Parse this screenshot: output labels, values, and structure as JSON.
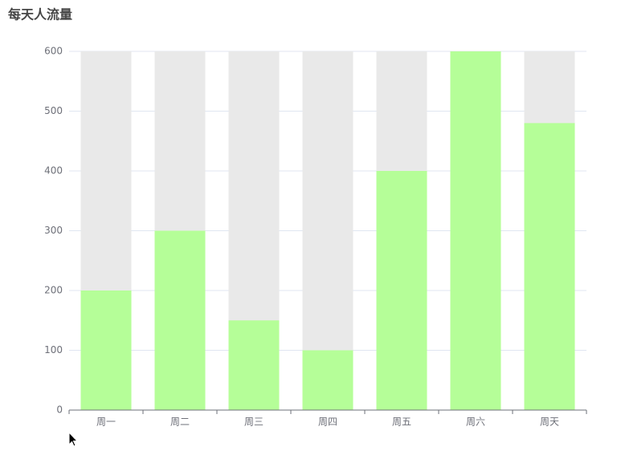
{
  "chart_data": {
    "type": "bar",
    "title": "每天人流量",
    "categories": [
      "周一",
      "周二",
      "周三",
      "周四",
      "周五",
      "周六",
      "周天"
    ],
    "values": [
      200,
      300,
      150,
      100,
      400,
      600,
      480
    ],
    "color": "#b5fe98",
    "background_color": "#e9e9e9",
    "ylim": [
      0,
      600
    ],
    "yticks": [
      0,
      100,
      200,
      300,
      400,
      500,
      600
    ],
    "grid": true
  }
}
